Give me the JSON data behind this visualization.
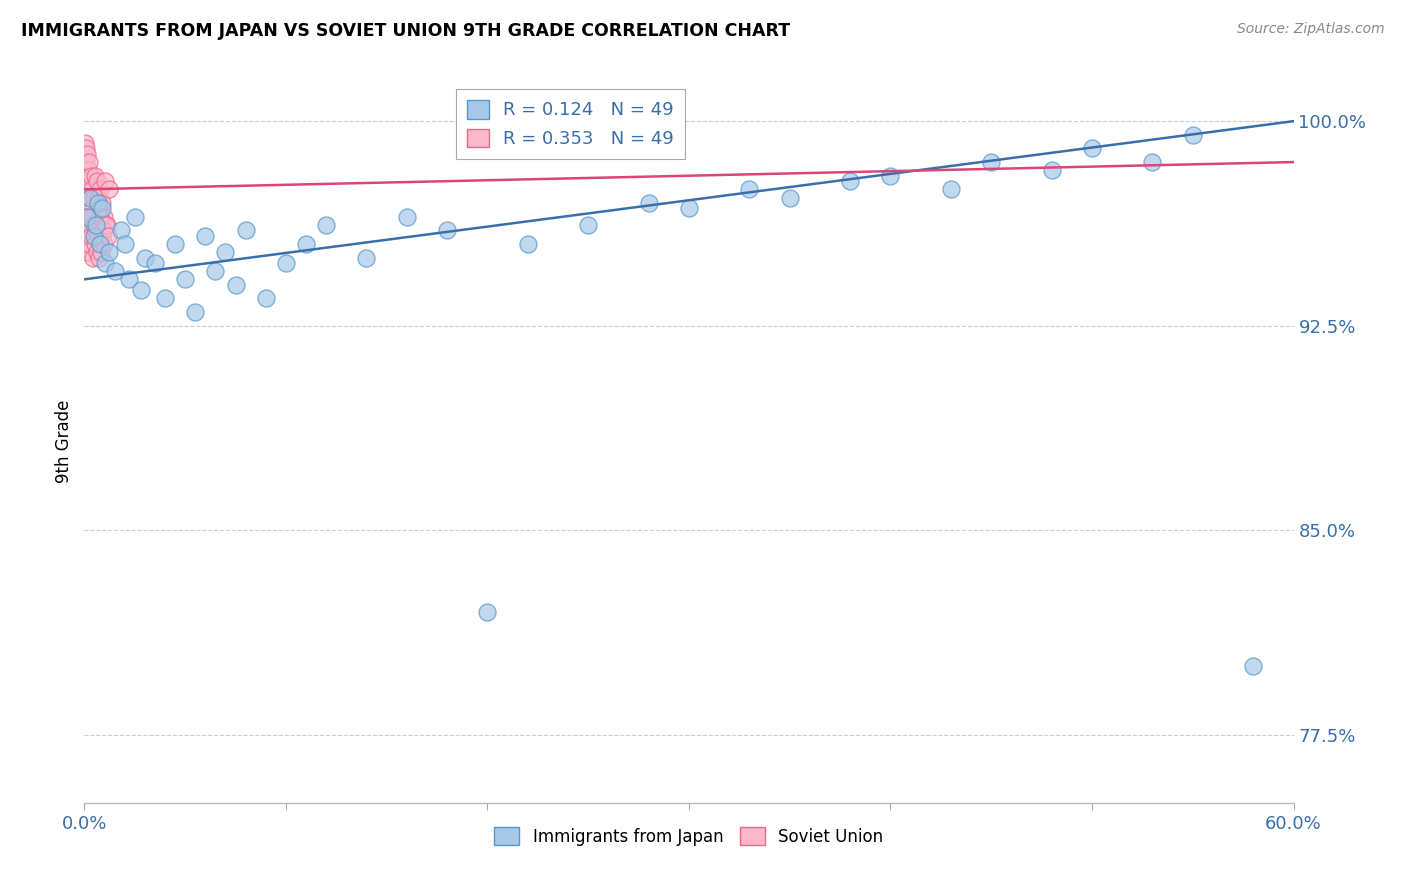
{
  "title": "IMMIGRANTS FROM JAPAN VS SOVIET UNION 9TH GRADE CORRELATION CHART",
  "source_text": "Source: ZipAtlas.com",
  "ylabel": "9th Grade",
  "xlim_pct": [
    0.0,
    60.0
  ],
  "ylim_pct": [
    75.0,
    101.5
  ],
  "yticks": [
    77.5,
    85.0,
    92.5,
    100.0
  ],
  "ytick_labels": [
    "77.5%",
    "85.0%",
    "92.5%",
    "100.0%"
  ],
  "legend_japan_label": "Immigrants from Japan",
  "legend_soviet_label": "Soviet Union",
  "R_japan": "0.124",
  "N_japan": "49",
  "R_soviet": "0.353",
  "N_soviet": "49",
  "japan_color": "#a8c8e8",
  "japan_edge_color": "#5599cc",
  "soviet_color": "#f9b8cc",
  "soviet_edge_color": "#ee6688",
  "trend_color": "#3a6eaa",
  "trend_soviet_color": "#dd4477",
  "background_color": "#ffffff",
  "grid_color": "#cccccc",
  "tick_label_color": "#3a6eaa",
  "japan_x": [
    0.15,
    0.3,
    0.5,
    0.6,
    0.7,
    0.8,
    0.9,
    1.0,
    1.2,
    1.5,
    1.8,
    2.0,
    2.2,
    2.5,
    2.8,
    3.0,
    3.5,
    4.0,
    4.5,
    5.0,
    5.5,
    6.0,
    6.5,
    7.0,
    7.5,
    8.0,
    9.0,
    10.0,
    11.0,
    12.0,
    14.0,
    16.0,
    18.0,
    20.0,
    22.0,
    25.0,
    28.0,
    30.0,
    33.0,
    35.0,
    38.0,
    40.0,
    43.0,
    45.0,
    48.0,
    50.0,
    53.0,
    55.0,
    58.0
  ],
  "japan_y": [
    96.5,
    97.2,
    95.8,
    96.2,
    97.0,
    95.5,
    96.8,
    94.8,
    95.2,
    94.5,
    96.0,
    95.5,
    94.2,
    96.5,
    93.8,
    95.0,
    94.8,
    93.5,
    95.5,
    94.2,
    93.0,
    95.8,
    94.5,
    95.2,
    94.0,
    96.0,
    93.5,
    94.8,
    95.5,
    96.2,
    95.0,
    96.5,
    96.0,
    82.0,
    95.5,
    96.2,
    97.0,
    96.8,
    97.5,
    97.2,
    97.8,
    98.0,
    97.5,
    98.5,
    98.2,
    99.0,
    98.5,
    99.5,
    80.0
  ],
  "soviet_x": [
    0.05,
    0.08,
    0.1,
    0.12,
    0.15,
    0.18,
    0.2,
    0.25,
    0.3,
    0.35,
    0.4,
    0.45,
    0.5,
    0.55,
    0.6,
    0.65,
    0.7,
    0.75,
    0.8,
    0.85,
    0.9,
    0.95,
    1.0,
    1.1,
    1.2,
    0.05,
    0.08,
    0.1,
    0.12,
    0.15,
    0.18,
    0.22,
    0.28,
    0.33,
    0.38,
    0.43,
    0.48,
    0.53,
    0.58,
    0.63,
    0.68,
    0.73,
    0.78,
    0.83,
    0.88,
    0.93,
    0.98,
    1.05,
    1.15
  ],
  "soviet_y": [
    99.2,
    98.5,
    99.0,
    98.8,
    97.5,
    98.2,
    97.8,
    98.5,
    97.2,
    98.0,
    97.5,
    96.8,
    97.2,
    98.0,
    96.5,
    97.8,
    97.2,
    96.8,
    97.5,
    96.2,
    97.0,
    96.5,
    97.8,
    96.2,
    97.5,
    95.5,
    96.0,
    95.8,
    96.5,
    95.2,
    96.0,
    95.5,
    96.2,
    95.8,
    96.5,
    95.0,
    96.2,
    95.5,
    96.0,
    95.2,
    95.8,
    95.0,
    96.5,
    95.2,
    95.8,
    96.0,
    95.5,
    96.2,
    95.8
  ],
  "trend_japan_x0": 0.0,
  "trend_japan_y0": 94.2,
  "trend_japan_x1": 60.0,
  "trend_japan_y1": 100.0,
  "trend_soviet_x0": 0.0,
  "trend_soviet_y0": 97.5,
  "trend_soviet_x1": 60.0,
  "trend_soviet_y1": 98.5
}
